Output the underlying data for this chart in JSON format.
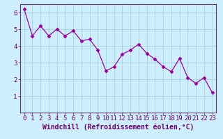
{
  "x": [
    0,
    1,
    2,
    3,
    4,
    5,
    6,
    7,
    8,
    9,
    10,
    11,
    12,
    13,
    14,
    15,
    16,
    17,
    18,
    19,
    20,
    21,
    22,
    23
  ],
  "y": [
    6.2,
    4.6,
    5.2,
    4.6,
    5.0,
    4.6,
    4.9,
    4.3,
    4.4,
    3.75,
    2.5,
    2.75,
    3.5,
    3.75,
    4.1,
    3.55,
    3.2,
    2.75,
    2.45,
    3.25,
    2.1,
    1.75,
    2.1,
    1.2
  ],
  "line_color": "#990099",
  "marker": "D",
  "marker_size": 2.5,
  "bg_color": "#cceeff",
  "grid_color": "#99cccc",
  "xlabel": "Windchill (Refroidissement éolien,°C)",
  "xlabel_color": "#660066",
  "tick_color": "#660066",
  "spine_color": "#663366",
  "ylim": [
    0,
    6.5
  ],
  "xlim": [
    -0.5,
    23.5
  ],
  "yticks": [
    1,
    2,
    3,
    4,
    5,
    6
  ],
  "xticks": [
    0,
    1,
    2,
    3,
    4,
    5,
    6,
    7,
    8,
    9,
    10,
    11,
    12,
    13,
    14,
    15,
    16,
    17,
    18,
    19,
    20,
    21,
    22,
    23
  ],
  "xlabel_fontsize": 7,
  "tick_fontsize": 6.5
}
